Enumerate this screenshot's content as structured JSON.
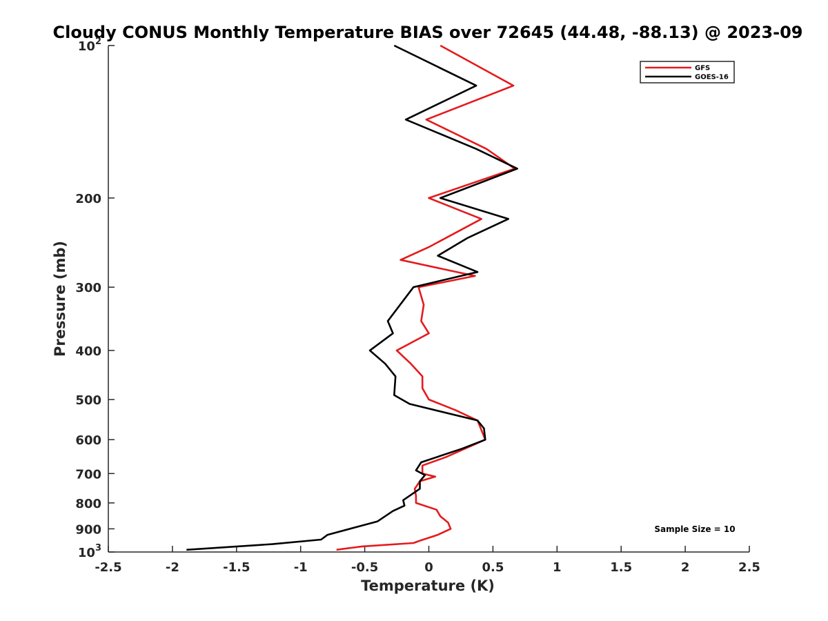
{
  "chart_data": {
    "type": "line",
    "title": "Cloudy CONUS Monthly Temperature BIAS over 72645 (44.48, -88.13) @ 2023-09",
    "xlabel": "Temperature (K)",
    "ylabel": "Pressure (mb)",
    "xlim": [
      -2.5,
      2.5
    ],
    "ylim": [
      100,
      1000
    ],
    "y_scale": "log",
    "y_reversed": true,
    "grid": false,
    "legend_position": "top-right",
    "x_ticks": [
      -2.5,
      -2,
      -1.5,
      -1,
      -0.5,
      0,
      0.5,
      1,
      1.5,
      2,
      2.5
    ],
    "x_tick_labels": [
      "-2.5",
      "-2",
      "-1.5",
      "-1",
      "-0.5",
      "0",
      "0.5",
      "1",
      "1.5",
      "2",
      "2.5"
    ],
    "y_ticks": [
      {
        "value": 100,
        "base": "10",
        "exp": "2"
      },
      {
        "value": 200,
        "base": "200",
        "exp": ""
      },
      {
        "value": 300,
        "base": "300",
        "exp": ""
      },
      {
        "value": 400,
        "base": "400",
        "exp": ""
      },
      {
        "value": 500,
        "base": "500",
        "exp": ""
      },
      {
        "value": 600,
        "base": "600",
        "exp": ""
      },
      {
        "value": 700,
        "base": "700",
        "exp": ""
      },
      {
        "value": 800,
        "base": "800",
        "exp": ""
      },
      {
        "value": 900,
        "base": "900",
        "exp": ""
      },
      {
        "value": 1000,
        "base": "10",
        "exp": "3"
      }
    ],
    "series": [
      {
        "name": "GFS",
        "color": "#e41a1c",
        "points": [
          {
            "x": 0.09,
            "y": 100
          },
          {
            "x": 0.66,
            "y": 120
          },
          {
            "x": -0.02,
            "y": 140
          },
          {
            "x": 0.45,
            "y": 160
          },
          {
            "x": 0.67,
            "y": 175
          },
          {
            "x": 0.0,
            "y": 200
          },
          {
            "x": 0.41,
            "y": 220
          },
          {
            "x": 0.0,
            "y": 250
          },
          {
            "x": -0.22,
            "y": 265
          },
          {
            "x": 0.36,
            "y": 285
          },
          {
            "x": -0.08,
            "y": 300
          },
          {
            "x": -0.04,
            "y": 325
          },
          {
            "x": -0.06,
            "y": 350
          },
          {
            "x": 0.0,
            "y": 370
          },
          {
            "x": -0.25,
            "y": 400
          },
          {
            "x": -0.14,
            "y": 425
          },
          {
            "x": -0.05,
            "y": 450
          },
          {
            "x": -0.05,
            "y": 475
          },
          {
            "x": 0.0,
            "y": 500
          },
          {
            "x": 0.21,
            "y": 525
          },
          {
            "x": 0.38,
            "y": 550
          },
          {
            "x": 0.44,
            "y": 600
          },
          {
            "x": 0.13,
            "y": 650
          },
          {
            "x": -0.05,
            "y": 675
          },
          {
            "x": -0.05,
            "y": 700
          },
          {
            "x": 0.05,
            "y": 710
          },
          {
            "x": -0.07,
            "y": 725
          },
          {
            "x": -0.11,
            "y": 750
          },
          {
            "x": -0.1,
            "y": 775
          },
          {
            "x": -0.1,
            "y": 800
          },
          {
            "x": 0.06,
            "y": 825
          },
          {
            "x": 0.09,
            "y": 850
          },
          {
            "x": 0.15,
            "y": 875
          },
          {
            "x": 0.17,
            "y": 900
          },
          {
            "x": 0.07,
            "y": 925
          },
          {
            "x": -0.07,
            "y": 950
          },
          {
            "x": -0.12,
            "y": 960
          },
          {
            "x": -0.52,
            "y": 975
          },
          {
            "x": -0.72,
            "y": 990
          }
        ]
      },
      {
        "name": "GOES-16",
        "color": "#000000",
        "points": [
          {
            "x": -0.27,
            "y": 100
          },
          {
            "x": 0.37,
            "y": 120
          },
          {
            "x": -0.18,
            "y": 140
          },
          {
            "x": 0.37,
            "y": 160
          },
          {
            "x": 0.69,
            "y": 175
          },
          {
            "x": 0.09,
            "y": 200
          },
          {
            "x": 0.62,
            "y": 220
          },
          {
            "x": 0.3,
            "y": 240
          },
          {
            "x": 0.07,
            "y": 260
          },
          {
            "x": 0.38,
            "y": 280
          },
          {
            "x": -0.12,
            "y": 300
          },
          {
            "x": -0.32,
            "y": 350
          },
          {
            "x": -0.28,
            "y": 370
          },
          {
            "x": -0.46,
            "y": 400
          },
          {
            "x": -0.34,
            "y": 425
          },
          {
            "x": -0.26,
            "y": 450
          },
          {
            "x": -0.27,
            "y": 490
          },
          {
            "x": -0.15,
            "y": 510
          },
          {
            "x": 0.38,
            "y": 550
          },
          {
            "x": 0.43,
            "y": 570
          },
          {
            "x": 0.44,
            "y": 600
          },
          {
            "x": 0.26,
            "y": 625
          },
          {
            "x": -0.06,
            "y": 665
          },
          {
            "x": -0.1,
            "y": 690
          },
          {
            "x": -0.03,
            "y": 705
          },
          {
            "x": -0.07,
            "y": 725
          },
          {
            "x": -0.07,
            "y": 750
          },
          {
            "x": -0.2,
            "y": 790
          },
          {
            "x": -0.19,
            "y": 810
          },
          {
            "x": -0.28,
            "y": 830
          },
          {
            "x": -0.4,
            "y": 870
          },
          {
            "x": -0.79,
            "y": 925
          },
          {
            "x": -0.84,
            "y": 945
          },
          {
            "x": -1.22,
            "y": 965
          },
          {
            "x": -1.89,
            "y": 990
          }
        ]
      }
    ],
    "annotation": "Sample Size = 10"
  }
}
